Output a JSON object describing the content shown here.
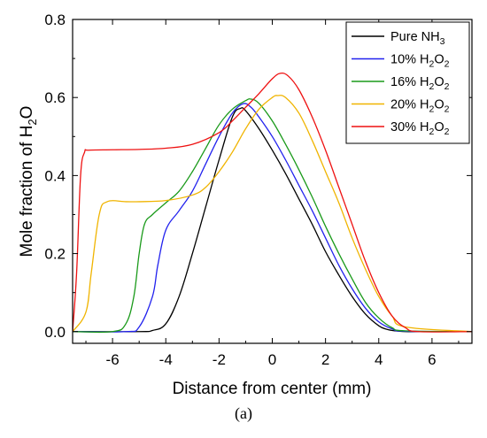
{
  "chart_data": {
    "type": "line",
    "title": "",
    "panel_label": "(a)",
    "xlabel": "Distance from center (mm)",
    "ylabel": {
      "prefix": "Mole fraction of H",
      "sub": "2",
      "suffix": "O"
    },
    "xlim": [
      -7.5,
      7.5
    ],
    "ylim": [
      -0.03,
      0.8
    ],
    "xticks": [
      -6,
      -4,
      -2,
      0,
      2,
      4,
      6
    ],
    "xtick_labels": [
      "-6",
      "-4",
      "-2",
      "0",
      "2",
      "4",
      "6"
    ],
    "yticks": [
      0.0,
      0.2,
      0.4,
      0.6,
      0.8
    ],
    "ytick_labels": [
      "0.0",
      "0.2",
      "0.4",
      "0.6",
      "0.8"
    ],
    "grid": false,
    "legend_position": "top-right",
    "series": [
      {
        "name": {
          "prefix": "Pure NH",
          "sub": "3",
          "mid": "",
          "sub2": ""
        },
        "color": "#000000",
        "x": [
          -7.5,
          -5.0,
          -4.5,
          -4.0,
          -3.5,
          -3.0,
          -2.5,
          -2.0,
          -1.5,
          -1.2,
          -1.0,
          -0.5,
          0.0,
          0.5,
          1.0,
          1.5,
          2.0,
          2.5,
          3.0,
          3.5,
          4.0,
          4.3,
          4.6,
          5.0,
          5.5,
          7.5
        ],
        "y": [
          0.0,
          0.0,
          0.003,
          0.02,
          0.09,
          0.2,
          0.32,
          0.44,
          0.55,
          0.572,
          0.566,
          0.52,
          0.465,
          0.405,
          0.34,
          0.275,
          0.205,
          0.145,
          0.09,
          0.045,
          0.015,
          0.006,
          0.002,
          0.0,
          0.0,
          0.0
        ]
      },
      {
        "name": {
          "prefix": "10% H",
          "sub": "2",
          "mid": "O",
          "sub2": "2"
        },
        "color": "#2222ee",
        "x": [
          -7.5,
          -5.5,
          -5.0,
          -4.5,
          -4.3,
          -4.0,
          -3.5,
          -3.0,
          -2.5,
          -2.0,
          -1.5,
          -1.1,
          -0.8,
          -0.5,
          0.0,
          0.5,
          1.0,
          1.5,
          2.0,
          2.5,
          3.0,
          3.5,
          4.0,
          4.5,
          5.0,
          7.5
        ],
        "y": [
          0.0,
          0.0,
          0.012,
          0.09,
          0.17,
          0.26,
          0.31,
          0.36,
          0.43,
          0.5,
          0.56,
          0.584,
          0.575,
          0.55,
          0.5,
          0.44,
          0.375,
          0.31,
          0.24,
          0.17,
          0.11,
          0.06,
          0.025,
          0.007,
          0.001,
          0.0
        ]
      },
      {
        "name": {
          "prefix": "16% H",
          "sub": "2",
          "mid": "O",
          "sub2": "2"
        },
        "color": "#1a9a1a",
        "x": [
          -7.5,
          -6.0,
          -5.5,
          -5.2,
          -5.0,
          -4.8,
          -4.5,
          -4.0,
          -3.5,
          -3.0,
          -2.5,
          -2.0,
          -1.5,
          -1.0,
          -0.8,
          -0.5,
          0.0,
          0.5,
          1.0,
          1.5,
          2.0,
          2.5,
          3.0,
          3.5,
          4.0,
          4.5,
          5.0,
          7.5
        ],
        "y": [
          0.0,
          0.0,
          0.02,
          0.09,
          0.2,
          0.275,
          0.3,
          0.33,
          0.36,
          0.41,
          0.47,
          0.53,
          0.57,
          0.592,
          0.596,
          0.585,
          0.54,
          0.48,
          0.415,
          0.345,
          0.27,
          0.2,
          0.135,
          0.075,
          0.035,
          0.01,
          0.002,
          0.0
        ]
      },
      {
        "name": {
          "prefix": "20% H",
          "sub": "2",
          "mid": "O",
          "sub2": "2"
        },
        "color": "#f0b400",
        "x": [
          -7.5,
          -7.0,
          -6.8,
          -6.5,
          -6.2,
          -5.5,
          -5.0,
          -4.0,
          -3.0,
          -2.5,
          -2.0,
          -1.5,
          -1.0,
          -0.5,
          0.0,
          0.2,
          0.5,
          1.0,
          1.5,
          2.0,
          2.5,
          3.0,
          3.5,
          4.0,
          4.5,
          5.0,
          7.5
        ],
        "y": [
          0.0,
          0.05,
          0.15,
          0.3,
          0.333,
          0.333,
          0.333,
          0.336,
          0.35,
          0.37,
          0.41,
          0.46,
          0.52,
          0.57,
          0.6,
          0.605,
          0.6,
          0.56,
          0.49,
          0.41,
          0.33,
          0.24,
          0.16,
          0.09,
          0.04,
          0.012,
          0.0
        ]
      },
      {
        "name": {
          "prefix": "30% H",
          "sub": "2",
          "mid": "O",
          "sub2": "2"
        },
        "color": "#ee1111",
        "x": [
          -7.5,
          -7.35,
          -7.2,
          -7.05,
          -6.9,
          -6.0,
          -5.0,
          -4.0,
          -3.0,
          -2.0,
          -1.5,
          -1.0,
          -0.5,
          0.0,
          0.3,
          0.6,
          1.0,
          1.5,
          2.0,
          2.5,
          3.0,
          3.5,
          4.0,
          4.5,
          5.0,
          5.5,
          7.5
        ],
        "y": [
          0.0,
          0.15,
          0.4,
          0.46,
          0.465,
          0.466,
          0.467,
          0.47,
          0.48,
          0.51,
          0.54,
          0.575,
          0.61,
          0.648,
          0.662,
          0.655,
          0.62,
          0.55,
          0.465,
          0.37,
          0.275,
          0.18,
          0.1,
          0.04,
          0.01,
          0.0,
          0.0
        ]
      }
    ]
  }
}
